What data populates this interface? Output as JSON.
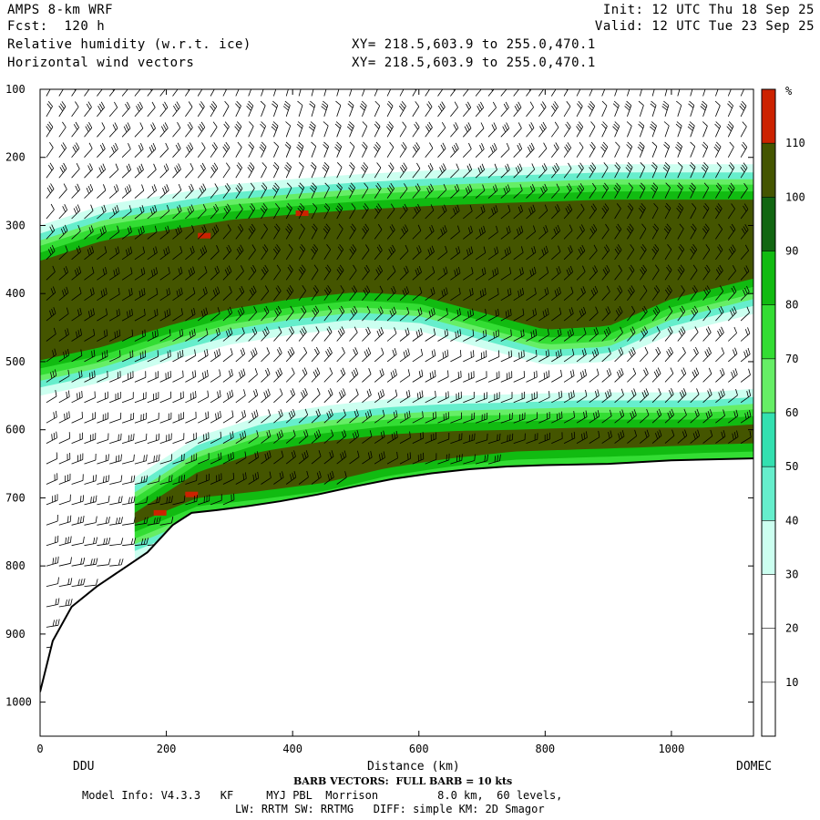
{
  "header": {
    "line1_left": "AMPS 8-km WRF",
    "line2_left": "Fcst:  120 h",
    "line3_left": "Relative humidity (w.r.t. ice)",
    "line4_left": "Horizontal wind vectors",
    "line1_right": "Init: 12 UTC Thu 18 Sep 25",
    "line2_right": "Valid: 12 UTC Tue 23 Sep 25",
    "xy_line1": "XY= 218.5,603.9 to 255.0,470.1",
    "xy_line2": "XY= 218.5,603.9 to 255.0,470.1"
  },
  "footer": {
    "left_station": "DDU",
    "right_station": "DOMEC",
    "barb_note": "BARB VECTORS:  FULL BARB = 10 kts",
    "model_info": "Model Info: V4.3.3   KF     MYJ PBL  Morrison         8.0 km,  60 levels,",
    "physics": "LW: RRTM SW: RRTMG   DIFF: simple KM: 2D Smagor"
  },
  "colors": {
    "c0": "#ffffff",
    "c30": "#ccfff0",
    "c40": "#66eecc",
    "c50": "#33e0b0",
    "c60": "#66ee66",
    "c70": "#33dd33",
    "c80": "#11bb11",
    "c90": "#116611",
    "c100": "#445500",
    "c110": "#cc2200",
    "terrain_line": "#000000",
    "barb": "#000000"
  },
  "chart_data": {
    "type": "heatmap",
    "title": "Relative humidity (w.r.t. ice)",
    "xlabel": "Distance (km)",
    "ylabel": "",
    "x_range": [
      0,
      1130
    ],
    "y_range": [
      100,
      1050
    ],
    "y_inverted": true,
    "x_ticks": [
      0,
      200,
      400,
      600,
      800,
      1000
    ],
    "y_ticks": [
      100,
      200,
      300,
      400,
      500,
      600,
      700,
      800,
      900,
      1000
    ],
    "colorbar": {
      "unit": "%",
      "levels": [
        10,
        20,
        30,
        40,
        50,
        60,
        70,
        80,
        90,
        100,
        110
      ],
      "colors": [
        "#ffffff",
        "#ffffff",
        "#ffffff",
        "#ccfff0",
        "#66eecc",
        "#33e0b0",
        "#66ee66",
        "#33dd33",
        "#11bb11",
        "#116611",
        "#445500",
        "#cc2200"
      ]
    },
    "terrain_surface": {
      "x": [
        0,
        20,
        50,
        90,
        130,
        170,
        210,
        240,
        280,
        330,
        380,
        440,
        500,
        560,
        620,
        680,
        740,
        800,
        900,
        1000,
        1130
      ],
      "p": [
        985,
        910,
        860,
        830,
        805,
        780,
        740,
        722,
        718,
        712,
        705,
        695,
        683,
        672,
        664,
        658,
        654,
        652,
        650,
        645,
        642
      ]
    },
    "moist_layers": [
      {
        "name": "upper_layer",
        "x": [
          0,
          100,
          200,
          300,
          400,
          500,
          600,
          700,
          800,
          900,
          1000,
          1130
        ],
        "top": [
          330,
          300,
          285,
          270,
          262,
          255,
          250,
          246,
          243,
          240,
          240,
          240
        ],
        "bottom": [
          520,
          500,
          470,
          445,
          430,
          420,
          425,
          450,
          475,
          470,
          430,
          400
        ]
      },
      {
        "name": "lower_layer",
        "x": [
          150,
          250,
          350,
          450,
          550,
          650,
          750,
          850,
          950,
          1050,
          1130
        ],
        "top": [
          700,
          640,
          610,
          595,
          585,
          580,
          578,
          575,
          575,
          575,
          570
        ],
        "bottom": [
          760,
          722,
          712,
          700,
          678,
          664,
          654,
          651,
          648,
          644,
          642
        ]
      }
    ],
    "wind_barb_rows_p": [
      110,
      140,
      170,
      200,
      230,
      260,
      290,
      320,
      350,
      380,
      410,
      440,
      470,
      500,
      530,
      560,
      590,
      620,
      650,
      680,
      710,
      740,
      770,
      800,
      830,
      860,
      890,
      920,
      950,
      980
    ],
    "wind_barb_spacing_km": 20
  }
}
